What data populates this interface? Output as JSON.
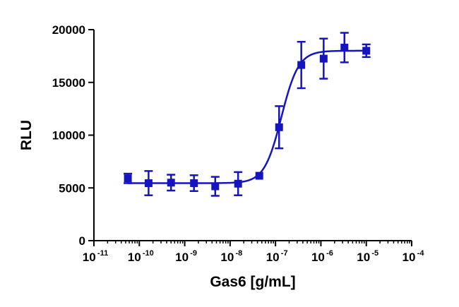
{
  "chart_data": {
    "type": "scatter",
    "xlabel": "Gas6 [g/mL]",
    "ylabel": "RLU",
    "xscale": "log",
    "xlim": [
      1e-11,
      0.0001
    ],
    "ylim": [
      0,
      20000
    ],
    "x_ticks": [
      {
        "base": "10",
        "exp": "-11"
      },
      {
        "base": "10",
        "exp": "-10"
      },
      {
        "base": "10",
        "exp": "-9"
      },
      {
        "base": "10",
        "exp": "-8"
      },
      {
        "base": "10",
        "exp": "-7"
      },
      {
        "base": "10",
        "exp": "-6"
      },
      {
        "base": "10",
        "exp": "-5"
      },
      {
        "base": "10",
        "exp": "-4"
      }
    ],
    "y_ticks": [
      "0",
      "5000",
      "10000",
      "15000",
      "20000"
    ],
    "y_tick_values": [
      0,
      5000,
      10000,
      15000,
      20000
    ],
    "grid": false,
    "legend": "none",
    "series": [
      {
        "color": "#1515c0",
        "marker": "square",
        "points": [
          {
            "x": 5.6e-11,
            "y": 5900,
            "err": 450
          },
          {
            "x": 1.6e-10,
            "y": 5450,
            "err": 1150
          },
          {
            "x": 5e-10,
            "y": 5500,
            "err": 750
          },
          {
            "x": 1.6e-09,
            "y": 5450,
            "err": 750
          },
          {
            "x": 4.7e-09,
            "y": 5150,
            "err": 900
          },
          {
            "x": 1.5e-08,
            "y": 5400,
            "err": 1100
          },
          {
            "x": 4.4e-08,
            "y": 6150,
            "err": 0
          },
          {
            "x": 1.2e-07,
            "y": 10750,
            "err": 2000
          },
          {
            "x": 3.7e-07,
            "y": 16650,
            "err": 2200
          },
          {
            "x": 1.15e-06,
            "y": 17250,
            "err": 1900
          },
          {
            "x": 3.3e-06,
            "y": 18300,
            "err": 1400
          },
          {
            "x": 1e-05,
            "y": 18000,
            "err": 600
          }
        ],
        "fit": {
          "model": "4PL",
          "bottom": 5450,
          "top": 18000,
          "ec50": 1.35e-07,
          "hill": 2.3,
          "x_from": 5.6e-11,
          "x_to": 1e-05
        }
      }
    ]
  }
}
